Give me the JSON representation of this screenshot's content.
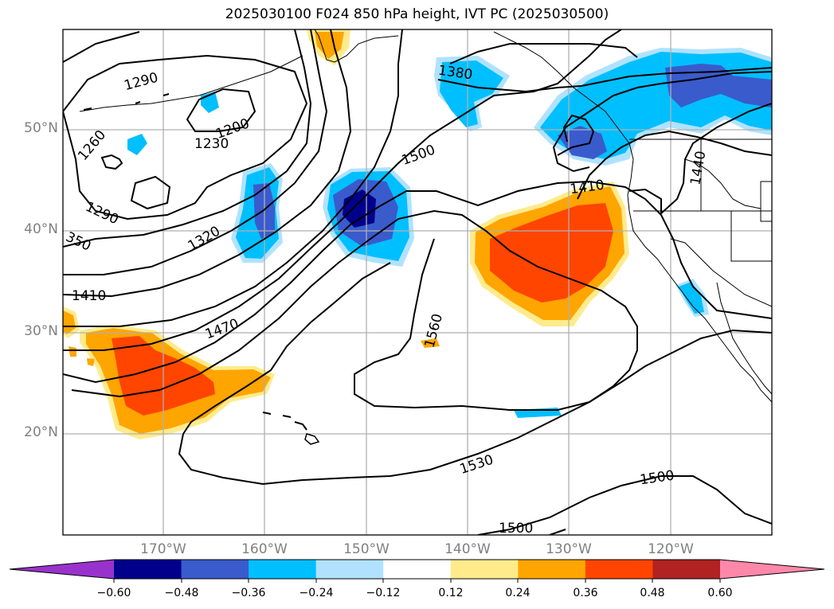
{
  "title": "2025030100 F024 850 hPa height, IVT PC (2025030500)",
  "map": {
    "lat_labels": [
      "50°N",
      "40°N",
      "30°N",
      "20°N"
    ],
    "lon_labels": [
      "170°W",
      "160°W",
      "150°W",
      "140°W",
      "130°W",
      "120°W"
    ],
    "contour_labels": [
      "1290",
      "1260",
      "1200",
      "1230",
      "1290",
      "1320",
      "350",
      "1410",
      "1470",
      "1500",
      "1380",
      "1410",
      "1440",
      "1560",
      "1530",
      "1500",
      "1500"
    ]
  },
  "colorbar": {
    "ticks": [
      "−0.60",
      "−0.48",
      "−0.36",
      "−0.24",
      "−0.12",
      "0.12",
      "0.24",
      "0.36",
      "0.48",
      "0.60"
    ],
    "colors": [
      "#9932cc",
      "#00008b",
      "#3a5bcc",
      "#00bfff",
      "#b0e2ff",
      "#ffffff",
      "#ffeb8c",
      "#ffa500",
      "#ff4500",
      "#b22222",
      "#ff88aa"
    ]
  }
}
